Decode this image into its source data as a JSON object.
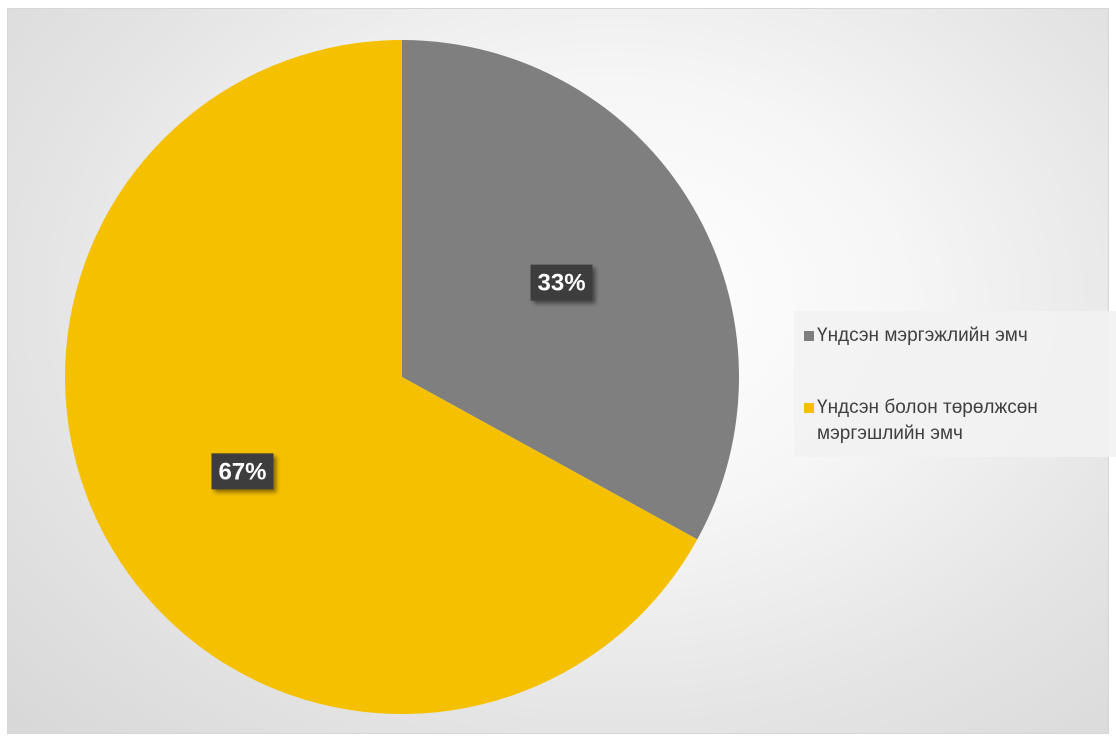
{
  "chart_data": {
    "type": "pie",
    "title": "",
    "categories": [
      "Үндсэн мэргэжлийн эмч",
      "Үндсэн болон төрөлжсөн мэргэшлийн эмч"
    ],
    "values": [
      33,
      67
    ],
    "labels": [
      "33%",
      "67%"
    ],
    "colors": [
      "#7f7f7f",
      "#f5c000"
    ],
    "legend_position": "right"
  },
  "legend": {
    "items": [
      {
        "label": "Үндсэн мэргэжлийн эмч",
        "color": "#7f7f7f"
      },
      {
        "label": "Үндсэн болон төрөлжсөн мэргэшлийн эмч",
        "color": "#f5c000"
      }
    ]
  }
}
